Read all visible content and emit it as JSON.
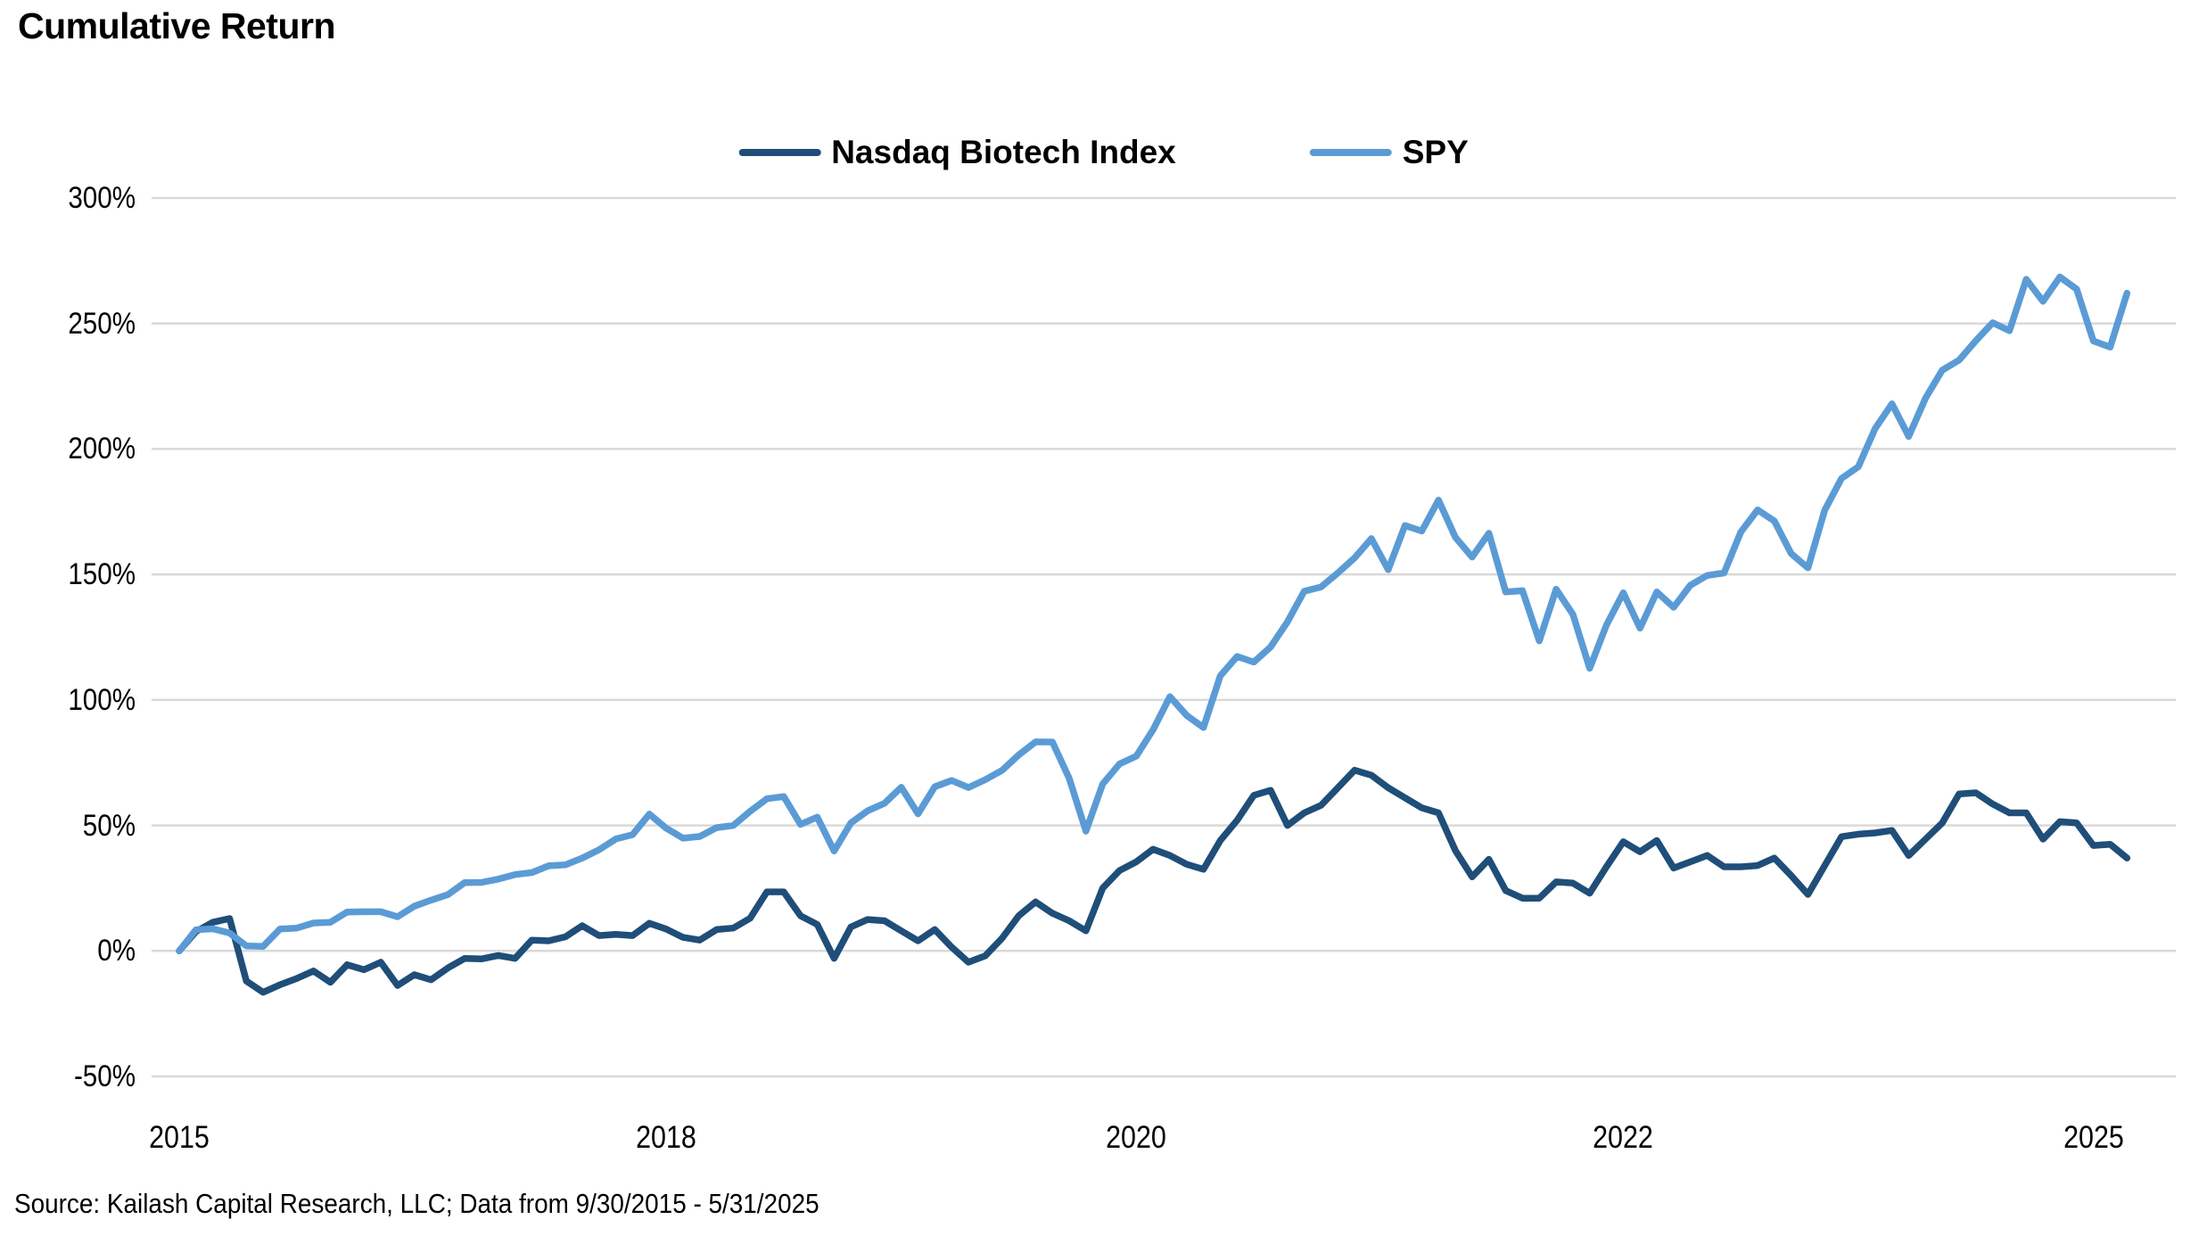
{
  "chart_data": {
    "type": "line",
    "title": "Cumulative Return",
    "source_note": "Source: Kailash Capital Research, LLC; Data from 9/30/2015 - 5/31/2025",
    "x_start": "2015-09",
    "x_end": "2025-05",
    "x_freq": "monthly",
    "x_tick_labels": [
      "2015",
      "2018",
      "2020",
      "2022",
      "2025"
    ],
    "x_tick_month_index": [
      0,
      29,
      57,
      86,
      114
    ],
    "y_tick_labels": [
      "300%",
      "250%",
      "200%",
      "150%",
      "100%",
      "50%",
      "0%",
      "-50%"
    ],
    "y_tick_values": [
      300,
      250,
      200,
      150,
      100,
      50,
      0,
      -50
    ],
    "ylim": [
      -50,
      300
    ],
    "unit": "percent cumulative return",
    "grid": "horizontal-only",
    "legend_position": "top-center",
    "colors": {
      "nbi": "#1f4e79",
      "spy": "#5b9bd5",
      "gridline": "#d9d9d9",
      "text": "#000000",
      "background": "#ffffff"
    },
    "series": [
      {
        "name": "Nasdaq Biotech Index",
        "color_key": "nbi",
        "values": [
          0,
          7.7,
          11.4,
          12.9,
          -12.0,
          -16.5,
          -13.5,
          -11.0,
          -8.0,
          -12.5,
          -5.5,
          -7.5,
          -4.5,
          -13.8,
          -9.5,
          -11.5,
          -6.8,
          -3.0,
          -3.2,
          -1.8,
          -3.0,
          4.3,
          4.0,
          5.6,
          10.0,
          6.1,
          6.6,
          6.1,
          11.0,
          8.7,
          5.4,
          4.3,
          8.5,
          9.1,
          13.0,
          23.5,
          23.5,
          14.0,
          10.5,
          -3.0,
          9.5,
          12.5,
          12.0,
          8.0,
          4.0,
          8.5,
          1.5,
          -4.5,
          -2.0,
          5.0,
          14.0,
          19.5,
          15.0,
          12.0,
          8.0,
          25.0,
          32.0,
          35.5,
          40.5,
          38.0,
          34.5,
          32.5,
          44.0,
          52.0,
          62.0,
          64.0,
          50.0,
          55.0,
          58.0,
          65.0,
          72.0,
          70.0,
          65.0,
          61.0,
          57.0,
          55.0,
          40.0,
          29.5,
          36.5,
          24.0,
          21.0,
          21.0,
          27.5,
          27.0,
          23.0,
          33.5,
          43.5,
          39.5,
          44.0,
          33.0,
          35.5,
          38.0,
          33.5,
          33.5,
          34.0,
          37.0,
          30.0,
          22.5,
          34.0,
          45.5,
          46.5,
          47.0,
          48.0,
          38.0,
          44.5,
          51.0,
          62.5,
          63.0,
          58.5,
          55.0,
          55.0,
          44.5,
          51.5,
          51.0,
          42.0,
          42.5,
          37.0
        ]
      },
      {
        "name": "SPY",
        "color_key": "spy",
        "values": [
          0,
          8.4,
          8.8,
          7.1,
          2.0,
          1.8,
          8.7,
          9.1,
          11.1,
          11.4,
          15.5,
          15.6,
          15.6,
          13.6,
          17.8,
          20.2,
          22.4,
          27.2,
          27.3,
          28.6,
          30.4,
          31.2,
          33.9,
          34.3,
          37.0,
          40.3,
          44.6,
          46.3,
          54.5,
          48.9,
          44.9,
          45.6,
          49.1,
          50.0,
          55.6,
          60.6,
          61.5,
          50.4,
          53.3,
          39.8,
          51.0,
          55.8,
          58.8,
          65.2,
          54.6,
          65.4,
          67.9,
          65.1,
          68.2,
          71.9,
          78.1,
          83.3,
          83.2,
          68.8,
          47.7,
          66.5,
          74.5,
          77.6,
          88.1,
          101.3,
          93.8,
          89.0,
          109.6,
          117.3,
          115.1,
          121.1,
          131.1,
          143.3,
          145.0,
          150.6,
          156.6,
          164.3,
          151.9,
          169.5,
          167.3,
          179.6,
          164.8,
          156.9,
          166.4,
          143.0,
          143.5,
          123.5,
          144.1,
          134.1,
          112.6,
          129.8,
          142.7,
          128.6,
          143.0,
          136.9,
          145.7,
          149.6,
          150.6,
          166.9,
          175.7,
          171.3,
          158.3,
          152.6,
          175.6,
          188.3,
          192.9,
          208.1,
          218.0,
          205.0,
          220.2,
          231.4,
          235.4,
          243.1,
          250.3,
          247.1,
          267.6,
          258.8,
          268.5,
          263.7,
          243.0,
          240.6,
          262.1
        ]
      }
    ]
  }
}
